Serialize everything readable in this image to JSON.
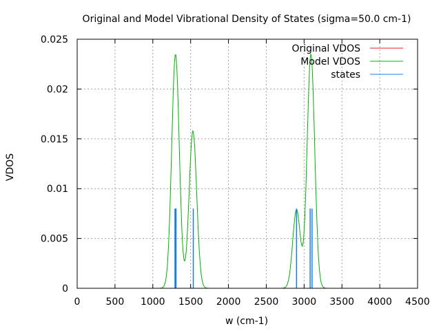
{
  "chart_data": {
    "type": "line",
    "title": "Original and Model Vibrational Density of States (sigma=50.0 cm-1)",
    "xlabel": "w (cm-1)",
    "ylabel": "VDOS",
    "xlim": [
      0,
      4500
    ],
    "ylim": [
      0,
      0.025
    ],
    "xticks": [
      "0",
      "500",
      "1000",
      "1500",
      "2000",
      "2500",
      "3000",
      "3500",
      "4000",
      "4500"
    ],
    "yticks": [
      "0",
      "0.005",
      "0.01",
      "0.015",
      "0.02",
      "0.025"
    ],
    "grid": true,
    "legend_position": "top-right",
    "sigma": 50.0,
    "series": [
      {
        "name": "Original VDOS",
        "color": "#e41a1c",
        "peaks": []
      },
      {
        "name": "Model VDOS",
        "color": "#00b000",
        "peaks": [
          {
            "center": 1300,
            "height": 0.0235
          },
          {
            "center": 1530,
            "height": 0.0158
          },
          {
            "center": 2900,
            "height": 0.0079
          },
          {
            "center": 3090,
            "height": 0.0235
          }
        ]
      },
      {
        "name": "states",
        "color": "#1080e8",
        "impulses": [
          {
            "x": 1300,
            "y": 0.008,
            "weight": "thick"
          },
          {
            "x": 1535,
            "y": 0.008,
            "weight": "thin"
          },
          {
            "x": 2900,
            "y": 0.008,
            "weight": "thin"
          },
          {
            "x": 3080,
            "y": 0.008,
            "weight": "thin"
          },
          {
            "x": 3105,
            "y": 0.008,
            "weight": "thin"
          }
        ]
      }
    ]
  }
}
